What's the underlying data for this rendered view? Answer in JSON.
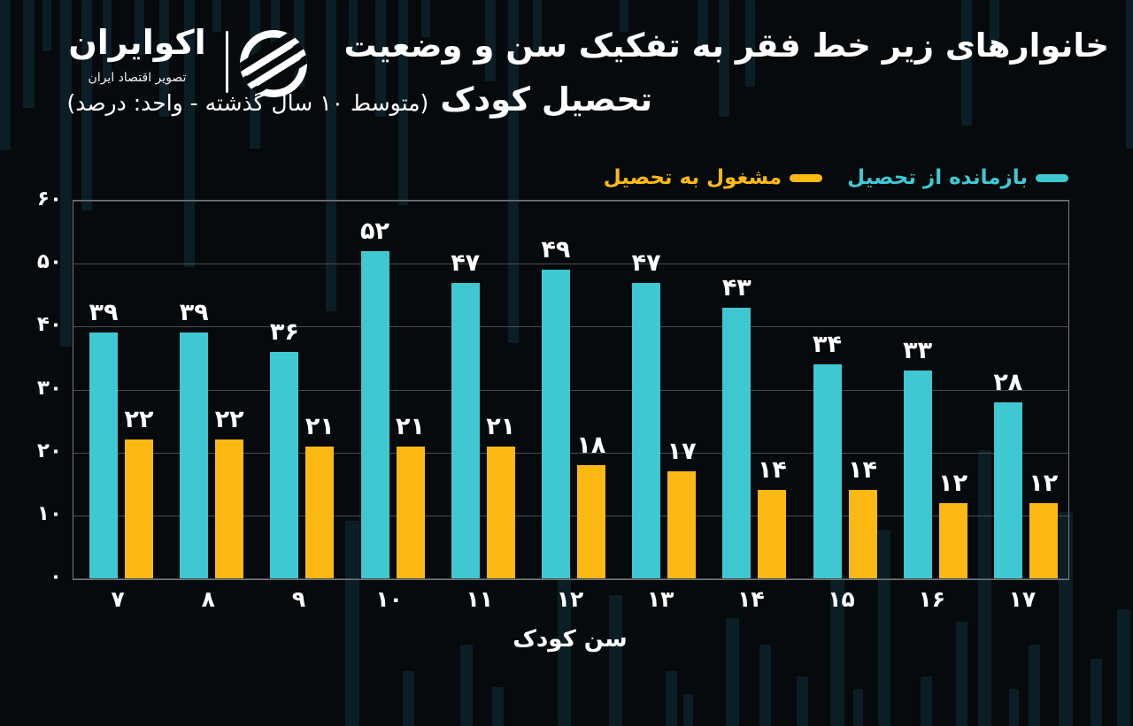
{
  "brand": {
    "name": "اکوایران",
    "tagline": "تصویر اقتصاد ایران"
  },
  "title": {
    "line1": "خانوارهای زیر خط فقر به تفکیک سن و وضعیت",
    "line2_bold": "تحصیل کودک",
    "line2_sub": "(متوسط ۱۰ سال گذشته - واحد: درصد)"
  },
  "legend": [
    {
      "label": "بازمانده از تحصیل",
      "color": "#3fc8d1"
    },
    {
      "label": "مشغول به تحصیل",
      "color": "#fdb913"
    }
  ],
  "chart_data": {
    "type": "bar",
    "title": "خانوارهای زیر خط فقر به تفکیک سن و وضعیت تحصیل کودک",
    "subtitle": "متوسط ۱۰ سال گذشته - واحد: درصد",
    "categories": [
      7,
      8,
      9,
      10,
      11,
      12,
      13,
      14,
      15,
      16,
      17
    ],
    "series": [
      {
        "name": "بازمانده از تحصیل",
        "key": "out-of-school",
        "color": "#3fc8d1",
        "values": [
          39,
          39,
          36,
          52,
          47,
          49,
          47,
          43,
          34,
          33,
          28
        ]
      },
      {
        "name": "مشغول به تحصیل",
        "key": "in-school",
        "color": "#fdb913",
        "values": [
          22,
          22,
          21,
          21,
          21,
          18,
          17,
          14,
          14,
          12,
          12
        ]
      }
    ],
    "xlabel": "سن کودک",
    "ylabel": "",
    "ylim": [
      0,
      60
    ],
    "yticks": [
      0,
      10,
      20,
      30,
      40,
      50,
      60
    ],
    "grid": true,
    "legend_position": "top-right",
    "numerals": "persian"
  },
  "colors": {
    "background": "#060a0c",
    "bar_cyan": "#3fc8d1",
    "bar_yellow": "#fdb913",
    "text": "#ffffff",
    "gridline": "#474d51",
    "plot_border": "#74797d",
    "watermark": "#10313d"
  }
}
